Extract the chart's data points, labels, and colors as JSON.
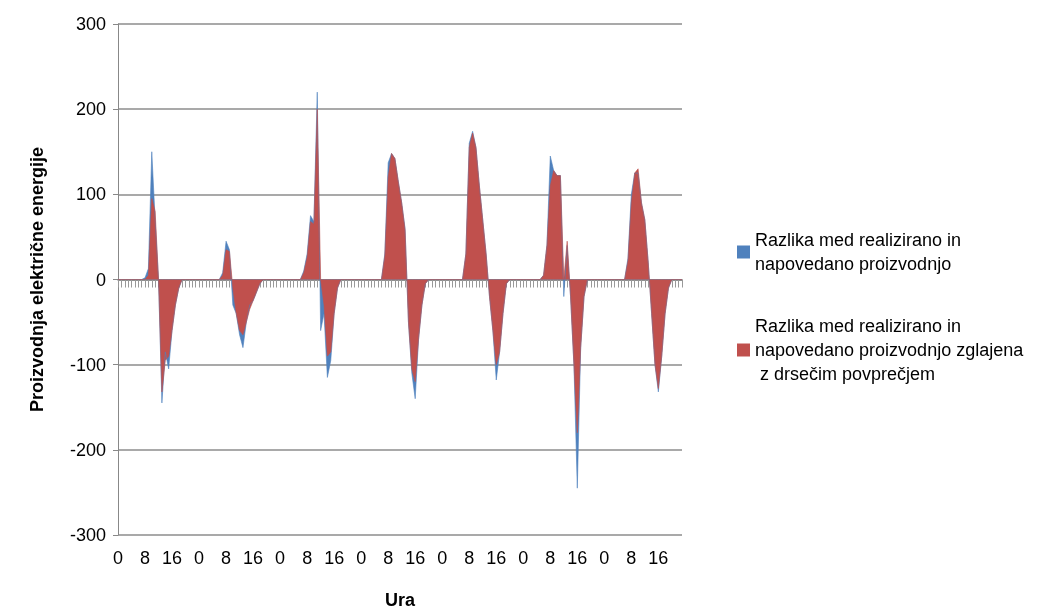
{
  "chart_data": {
    "type": "area",
    "xlabel": "Ura",
    "ylabel": "Proizvodnja električne energije",
    "categories": [
      "0",
      null,
      null,
      null,
      null,
      null,
      null,
      null,
      "8",
      null,
      null,
      null,
      null,
      null,
      null,
      null,
      "16",
      null,
      null,
      null,
      null,
      null,
      null,
      null,
      "0",
      null,
      null,
      null,
      null,
      null,
      null,
      null,
      "8",
      null,
      null,
      null,
      null,
      null,
      null,
      null,
      "16",
      null,
      null,
      null,
      null,
      null,
      null,
      null,
      "0",
      null,
      null,
      null,
      null,
      null,
      null,
      null,
      "8",
      null,
      null,
      null,
      null,
      null,
      null,
      null,
      "16",
      null,
      null,
      null,
      null,
      null,
      null,
      null,
      "0",
      null,
      null,
      null,
      null,
      null,
      null,
      null,
      "8",
      null,
      null,
      null,
      null,
      null,
      null,
      null,
      "16",
      null,
      null,
      null,
      null,
      null,
      null,
      null,
      "0",
      null,
      null,
      null,
      null,
      null,
      null,
      null,
      "8",
      null,
      null,
      null,
      null,
      null,
      null,
      null,
      "16",
      null,
      null,
      null,
      null,
      null,
      null,
      null,
      "0",
      null,
      null,
      null,
      null,
      null,
      null,
      null,
      "8",
      null,
      null,
      null,
      null,
      null,
      null,
      null,
      "16",
      null,
      null,
      null,
      null,
      null,
      null,
      null,
      "0",
      null,
      null,
      null,
      null,
      null,
      null,
      null,
      "8",
      null,
      null,
      null,
      null,
      null,
      null,
      null,
      "16",
      null,
      null,
      null,
      null,
      null,
      null,
      null
    ],
    "series": [
      {
        "name": "Razlika med realizirano in napovedano proizvodnjo",
        "color": "#4f81bd",
        "values": [
          0,
          0,
          0,
          0,
          0,
          0,
          0,
          0,
          2,
          13,
          150,
          70,
          0,
          -145,
          -85,
          -105,
          -60,
          -30,
          -10,
          0,
          0,
          0,
          0,
          0,
          0,
          0,
          0,
          0,
          0,
          0,
          0,
          8,
          45,
          35,
          -30,
          -40,
          -65,
          -80,
          -50,
          -30,
          -25,
          -15,
          -5,
          0,
          0,
          0,
          0,
          0,
          0,
          0,
          0,
          0,
          0,
          0,
          0,
          10,
          30,
          75,
          68,
          220,
          -60,
          -40,
          -115,
          -95,
          -40,
          -10,
          0,
          0,
          0,
          0,
          0,
          0,
          0,
          0,
          0,
          0,
          0,
          0,
          0,
          30,
          137,
          148,
          142,
          115,
          90,
          60,
          -50,
          -110,
          -140,
          -70,
          -30,
          -5,
          0,
          0,
          0,
          0,
          0,
          0,
          0,
          0,
          0,
          0,
          0,
          30,
          160,
          174,
          155,
          110,
          70,
          30,
          -20,
          -60,
          -118,
          -85,
          -40,
          -5,
          0,
          0,
          0,
          0,
          0,
          0,
          0,
          0,
          0,
          0,
          5,
          40,
          145,
          128,
          122,
          122,
          -20,
          40,
          -20,
          -100,
          -245,
          -80,
          -20,
          0,
          0,
          0,
          0,
          0,
          0,
          0,
          0,
          0,
          0,
          0,
          0,
          25,
          100,
          125,
          125,
          90,
          70,
          20,
          -40,
          -100,
          -132,
          -90,
          -40,
          -10,
          0,
          0,
          0,
          0
        ]
      },
      {
        "name": "Razlika med realizirano in napovedano proizvodnjo zglajena z drsečim povprečjem",
        "color": "#c0504d",
        "values": [
          0,
          0,
          0,
          0,
          0,
          0,
          0,
          0,
          0,
          5,
          95,
          80,
          0,
          -132,
          -95,
          -90,
          -60,
          -30,
          -10,
          0,
          0,
          0,
          0,
          0,
          0,
          0,
          0,
          0,
          0,
          0,
          0,
          5,
          35,
          33,
          -10,
          -40,
          -60,
          -65,
          -50,
          -35,
          -25,
          -15,
          -5,
          0,
          0,
          0,
          0,
          0,
          0,
          0,
          0,
          0,
          0,
          0,
          0,
          8,
          26,
          68,
          65,
          200,
          0,
          -30,
          -90,
          -85,
          -40,
          -10,
          0,
          0,
          0,
          0,
          0,
          0,
          0,
          0,
          0,
          0,
          0,
          0,
          0,
          28,
          120,
          148,
          142,
          115,
          90,
          58,
          -50,
          -105,
          -120,
          -70,
          -30,
          -5,
          0,
          0,
          0,
          0,
          0,
          0,
          0,
          0,
          0,
          0,
          0,
          30,
          155,
          172,
          155,
          110,
          70,
          30,
          -20,
          -60,
          -100,
          -85,
          -40,
          -5,
          0,
          0,
          0,
          0,
          0,
          0,
          0,
          0,
          0,
          0,
          5,
          40,
          110,
          128,
          122,
          122,
          0,
          45,
          -20,
          -100,
          -180,
          -80,
          -20,
          0,
          0,
          0,
          0,
          0,
          0,
          0,
          0,
          0,
          0,
          0,
          0,
          22,
          90,
          125,
          130,
          90,
          70,
          20,
          -40,
          -100,
          -128,
          -90,
          -40,
          -10,
          0,
          0,
          0,
          0
        ]
      }
    ],
    "ylim": [
      -300,
      300
    ],
    "yticks": [
      -300,
      -200,
      -100,
      0,
      100,
      200,
      300
    ],
    "grid": "y",
    "legend": "right"
  }
}
